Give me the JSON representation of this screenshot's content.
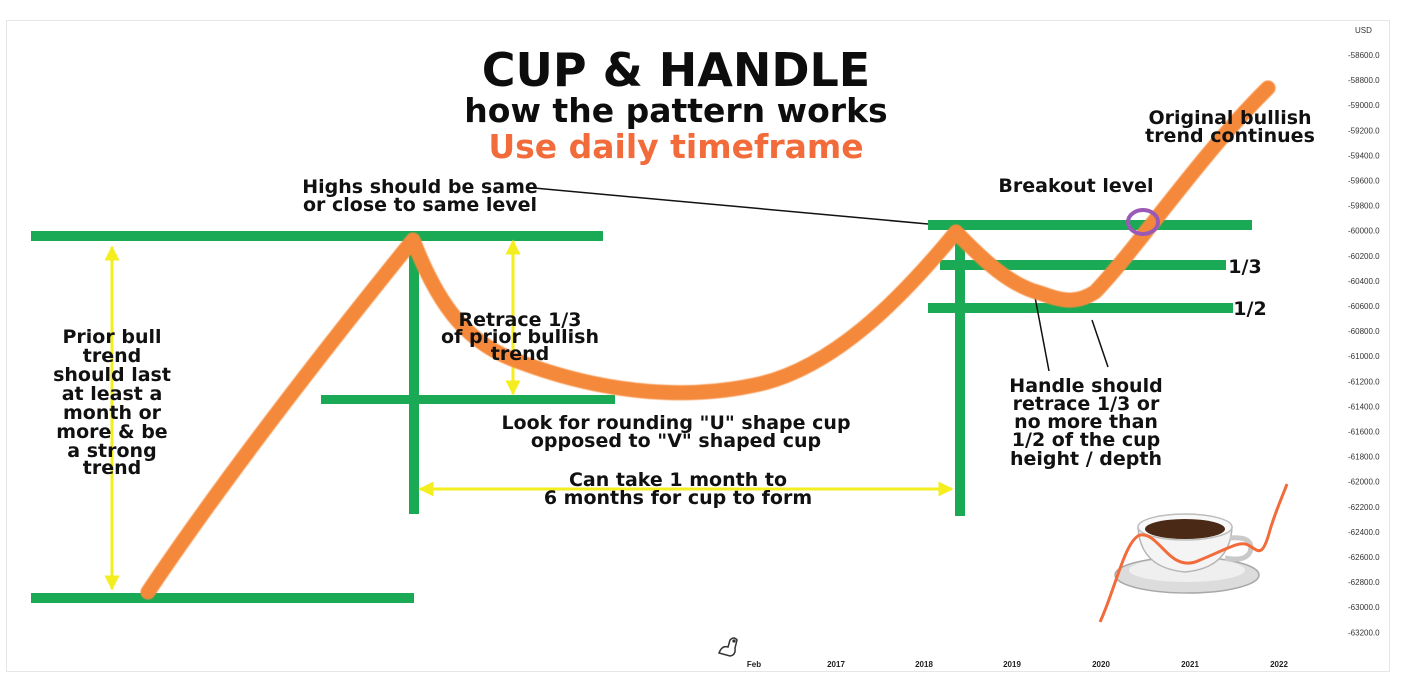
{
  "header": {
    "title": "CUP & HANDLE",
    "subtitle": "how the pattern works",
    "tagline": "Use daily timeframe"
  },
  "annotations": {
    "highs_same": [
      "Highs should be same",
      "or close to same level"
    ],
    "prior_trend": [
      "Prior bull",
      "trend",
      "should last",
      "at least a",
      "month or",
      "more & be",
      "a strong",
      "trend"
    ],
    "retrace": [
      "Retrace 1/3",
      "of prior bullish",
      "trend"
    ],
    "rounding": [
      "Look for rounding \"U\" shape cup",
      "opposed to \"V\" shaped cup"
    ],
    "duration": [
      "Can take 1 month to",
      "6 months for cup to form"
    ],
    "handle": [
      "Handle should",
      "retrace 1/3 or",
      "no more than",
      "1/2 of the cup",
      "height / depth"
    ],
    "breakout": "Breakout level",
    "continues": [
      "Original bullish",
      "trend continues"
    ],
    "third": "1/3",
    "half": "1/2"
  },
  "price_axis": {
    "currency": "USD",
    "ticks": [
      "-58600.0",
      "-58800.0",
      "-59000.0",
      "-59200.0",
      "-59400.0",
      "-59600.0",
      "-59800.0",
      "-60000.0",
      "-60200.0",
      "-60400.0",
      "-60600.0",
      "-60800.0",
      "-61000.0",
      "-61200.0",
      "-61400.0",
      "-61600.0",
      "-61800.0",
      "-62000.0",
      "-62200.0",
      "-62400.0",
      "-62600.0",
      "-62800.0",
      "-63000.0",
      "-63200.0"
    ]
  },
  "time_axis": {
    "ticks": [
      "Feb",
      "2017",
      "2018",
      "2019",
      "2020",
      "2021",
      "2022"
    ]
  },
  "colors": {
    "orange_curve": "#f5893a",
    "green_lines": "#1aaa55",
    "yellow_arrows": "#f5ee1f",
    "tagline": "#f26b3a",
    "breakout_circle": "#9b59b6"
  },
  "icons": {
    "watermark": "dinosaur-icon",
    "mascot": "coffee-cup-icon"
  }
}
